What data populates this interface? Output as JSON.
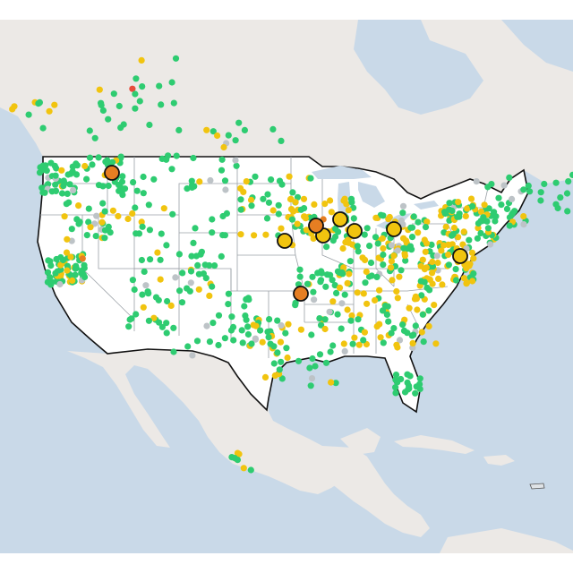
{
  "map": {
    "colors": {
      "water": "#c9d9e8",
      "land": "#ece9e6",
      "land_alt": "#f1efed",
      "us_fill": "#ffffff",
      "us_border": "#111111",
      "state_line": "#9aa0a6",
      "good": "#2ecc71",
      "moderate": "#f1c40f",
      "sensitive": "#e67e22",
      "unhealthy": "#e74c3c",
      "nodata": "#bdc3c7"
    },
    "sensor_classes": [
      "good",
      "moderate",
      "sensitive",
      "unhealthy",
      "nodata"
    ],
    "highlighted_station_classes": [
      "sensitive",
      "moderate",
      "sensitive",
      "moderate",
      "moderate",
      "moderate",
      "moderate",
      "moderate",
      "sensitive"
    ]
  }
}
